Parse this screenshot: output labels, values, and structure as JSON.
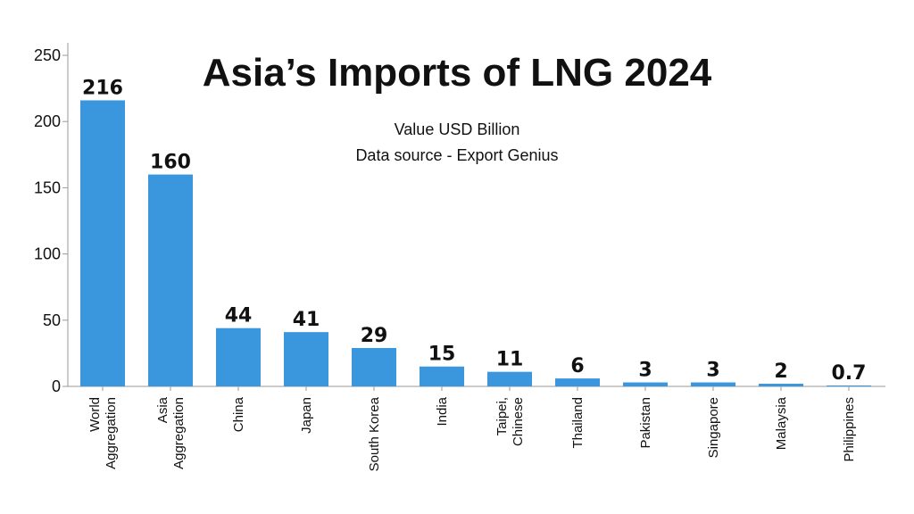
{
  "chart_data": {
    "type": "bar",
    "title": "Asia’s Imports of LNG 2024",
    "subtitle_lines": [
      "Value USD Billion",
      "Data source - Export Genius"
    ],
    "categories": [
      [
        "World",
        "Aggregation"
      ],
      [
        "Asia",
        "Aggregation"
      ],
      [
        "China"
      ],
      [
        "Japan"
      ],
      [
        "South Korea"
      ],
      [
        "India"
      ],
      [
        "Taipei,",
        "Chinese"
      ],
      [
        "Thailand"
      ],
      [
        "Pakistan"
      ],
      [
        "Singapore"
      ],
      [
        "Malaysia"
      ],
      [
        "Philippines"
      ]
    ],
    "values": [
      216,
      160,
      44,
      41,
      29,
      15,
      11,
      6,
      3,
      3,
      2,
      0.7
    ],
    "data_labels": [
      "216",
      "160",
      "44",
      "41",
      "29",
      "15",
      "11",
      "6",
      "3",
      "3",
      "2",
      "0.7"
    ],
    "ylim": [
      0,
      250
    ],
    "yticks": [
      0,
      50,
      100,
      150,
      200,
      250
    ],
    "grid": false,
    "bar_color": "#3a96dd"
  }
}
